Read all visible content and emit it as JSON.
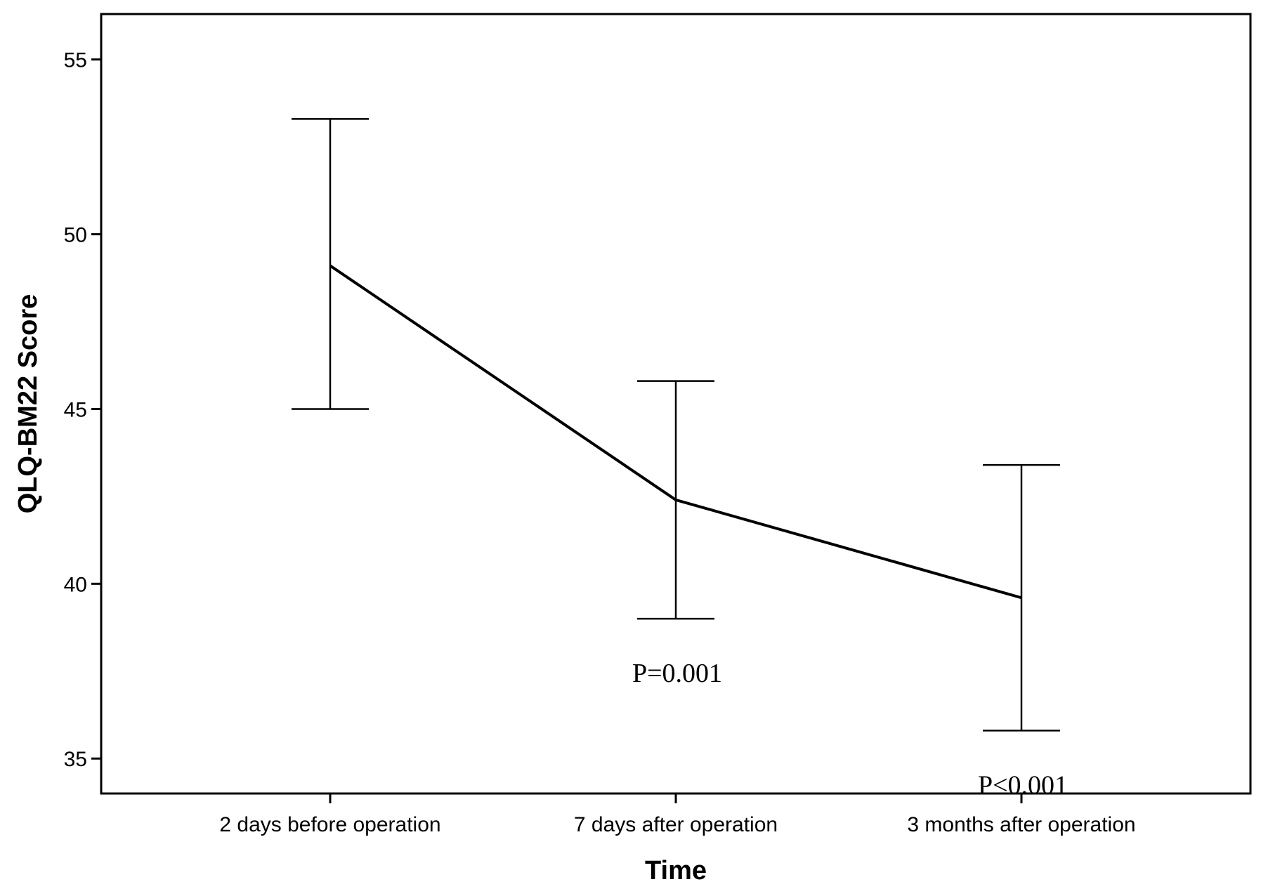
{
  "chart_data": {
    "type": "line",
    "title": "",
    "xlabel": "Time",
    "ylabel": "QLQ-BM22 Score",
    "categories": [
      "2 days before operation",
      "7 days after operation",
      "3 months after operation"
    ],
    "series": [
      {
        "values": [
          49.1,
          42.4,
          39.6
        ],
        "error_low": [
          45.0,
          39.0,
          35.8
        ],
        "error_high": [
          53.3,
          45.8,
          43.4
        ]
      }
    ],
    "ylim": [
      34.0,
      56.3
    ],
    "yticks": [
      35,
      40,
      45,
      50,
      55
    ],
    "grid": false,
    "annotations": [
      {
        "category_index": 1,
        "text": "P=0.001"
      },
      {
        "category_index": 2,
        "text": "P<0.001"
      }
    ],
    "colors": {
      "line": "#000000",
      "axis": "#000000",
      "background": "#ffffff"
    }
  }
}
